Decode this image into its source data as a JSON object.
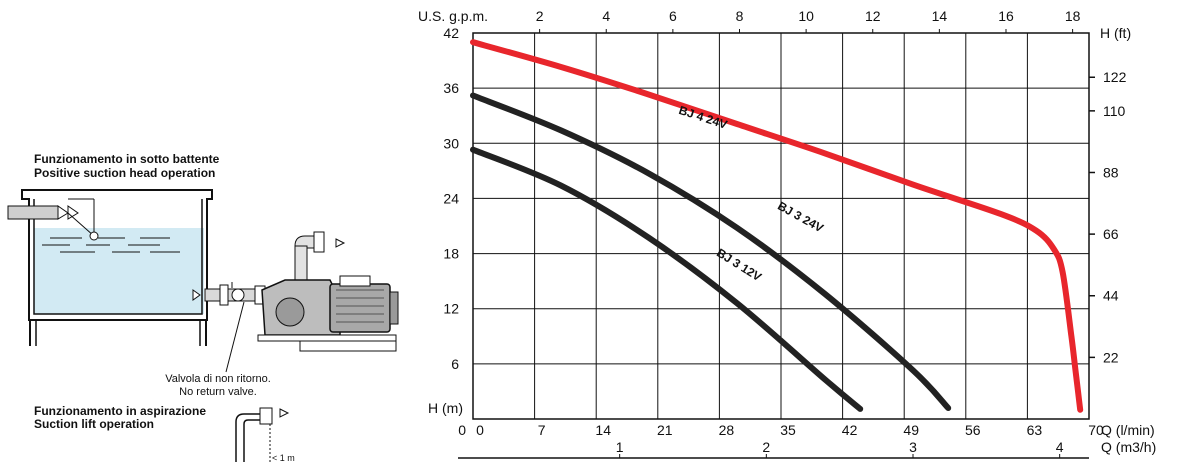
{
  "diagram": {
    "positive_suction_it": "Funzionamento in sotto battente",
    "positive_suction_en": "Positive suction head operation",
    "valve_note_it": "Valvola di non ritorno.",
    "valve_note_en": "No return valve.",
    "suction_lift_it": "Funzionamento in aspirazione",
    "suction_lift_en": "Suction lift operation",
    "suction_lift_dim": "< 1 m"
  },
  "chart_data": {
    "type": "line",
    "title": "",
    "xlabel": "Q (l/min)",
    "ylabel": "H (m)",
    "xlim": [
      0,
      70
    ],
    "ylim": [
      0,
      42
    ],
    "x_ticks": [
      "0",
      "7",
      "14",
      "21",
      "28",
      "35",
      "42",
      "49",
      "56",
      "63",
      "70"
    ],
    "y_ticks": [
      "6",
      "12",
      "18",
      "24",
      "30",
      "36",
      "42"
    ],
    "zero_label": "0",
    "grid": true,
    "top_axis": {
      "label": "U.S. g.p.m.",
      "ticks": [
        {
          "v": 2,
          "label": "2"
        },
        {
          "v": 4,
          "label": "4"
        },
        {
          "v": 6,
          "label": "6"
        },
        {
          "v": 8,
          "label": "8"
        },
        {
          "v": 10,
          "label": "10"
        },
        {
          "v": 12,
          "label": "12"
        },
        {
          "v": 14,
          "label": "14"
        },
        {
          "v": 16,
          "label": "16"
        },
        {
          "v": 18,
          "label": "18"
        }
      ]
    },
    "right_axis": {
      "label": "H (ft)",
      "ticks": [
        {
          "v": 22,
          "label": "22"
        },
        {
          "v": 44,
          "label": "44"
        },
        {
          "v": 66,
          "label": "66"
        },
        {
          "v": 88,
          "label": "88"
        },
        {
          "v": 110,
          "label": "110"
        },
        {
          "v": 122,
          "label": "122"
        }
      ]
    },
    "bottom_axis2": {
      "label": "Q (m3/h)",
      "ticks": [
        {
          "v": 1,
          "label": "1"
        },
        {
          "v": 2,
          "label": "2"
        },
        {
          "v": 3,
          "label": "3"
        },
        {
          "v": 4,
          "label": "4"
        }
      ]
    },
    "series": [
      {
        "name": "BJ 4 24V",
        "color": "#e8262c",
        "x": [
          0,
          10,
          20,
          30,
          40,
          50,
          60,
          64,
          66,
          67,
          68,
          68.5,
          69
        ],
        "y": [
          41,
          38.3,
          35.3,
          32.1,
          28.9,
          25.5,
          22.3,
          20.5,
          18.5,
          16,
          9,
          5,
          1
        ]
      },
      {
        "name": "BJ 3 24V",
        "color": "#222222",
        "x": [
          0,
          10,
          20,
          30,
          40,
          50,
          54
        ],
        "y": [
          35.2,
          31.4,
          26.7,
          20.8,
          13.6,
          5.3,
          1.2
        ]
      },
      {
        "name": "BJ 3 12V",
        "color": "#222222",
        "x": [
          0,
          10,
          20,
          30,
          40,
          44
        ],
        "y": [
          29.3,
          25.4,
          19.7,
          12.6,
          4.3,
          1.1
        ]
      }
    ]
  }
}
